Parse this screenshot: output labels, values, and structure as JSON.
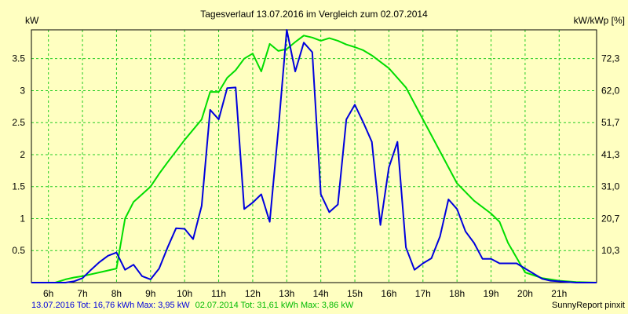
{
  "chart_data": {
    "type": "line",
    "title": "Tagesverlauf 13.07.2016 im Vergleich zum 02.07.2014",
    "ylabel_left": "kW",
    "ylabel_right": "kW/kWp [%]",
    "xlim": [
      5.5,
      22.1
    ],
    "ylim": [
      0,
      3.95
    ],
    "grid": true,
    "x_ticks": [
      {
        "x": 6,
        "label": "6h"
      },
      {
        "x": 7,
        "label": "7h"
      },
      {
        "x": 8,
        "label": "8h"
      },
      {
        "x": 9,
        "label": "9h"
      },
      {
        "x": 10,
        "label": "10h"
      },
      {
        "x": 11,
        "label": "11h"
      },
      {
        "x": 12,
        "label": "12h"
      },
      {
        "x": 13,
        "label": "13h"
      },
      {
        "x": 14,
        "label": "14h"
      },
      {
        "x": 15,
        "label": "15h"
      },
      {
        "x": 16,
        "label": "16h"
      },
      {
        "x": 17,
        "label": "17h"
      },
      {
        "x": 18,
        "label": "18h"
      },
      {
        "x": 19,
        "label": "19h"
      },
      {
        "x": 20,
        "label": "20h"
      },
      {
        "x": 21,
        "label": "21h"
      }
    ],
    "y_ticks_left": [
      {
        "y": 0.5,
        "label": "0.5"
      },
      {
        "y": 1,
        "label": "1"
      },
      {
        "y": 1.5,
        "label": "1.5"
      },
      {
        "y": 2,
        "label": "2"
      },
      {
        "y": 2.5,
        "label": "2.5"
      },
      {
        "y": 3,
        "label": "3"
      },
      {
        "y": 3.5,
        "label": "3.5"
      }
    ],
    "y_ticks_right": [
      {
        "y": 0.5,
        "label": "10,3"
      },
      {
        "y": 1,
        "label": "20,7"
      },
      {
        "y": 1.5,
        "label": "31,0"
      },
      {
        "y": 2,
        "label": "41,3"
      },
      {
        "y": 2.5,
        "label": "51,7"
      },
      {
        "y": 3,
        "label": "62,0"
      },
      {
        "y": 3.5,
        "label": "72,3"
      }
    ],
    "series": [
      {
        "name": "13.07.2016",
        "color": "#0000dd",
        "x": [
          5.5,
          6.5,
          6.75,
          7,
          7.25,
          7.5,
          7.75,
          8,
          8.25,
          8.5,
          8.75,
          9,
          9.25,
          9.5,
          9.75,
          10,
          10.25,
          10.5,
          10.75,
          11,
          11.25,
          11.5,
          11.75,
          12,
          12.25,
          12.5,
          12.75,
          13,
          13.25,
          13.5,
          13.75,
          14,
          14.25,
          14.5,
          14.75,
          15,
          15.25,
          15.5,
          15.75,
          16,
          16.25,
          16.5,
          16.75,
          17,
          17.25,
          17.5,
          17.75,
          18,
          18.25,
          18.5,
          18.75,
          19,
          19.25,
          19.5,
          19.75,
          20,
          20.25,
          20.5,
          20.75,
          21,
          21.25,
          21.5,
          22.1
        ],
        "y": [
          0,
          0,
          0.02,
          0.07,
          0.2,
          0.32,
          0.42,
          0.47,
          0.2,
          0.28,
          0.1,
          0.05,
          0.22,
          0.55,
          0.85,
          0.84,
          0.68,
          1.2,
          2.7,
          2.55,
          3.04,
          3.05,
          1.15,
          1.25,
          1.38,
          0.95,
          2.38,
          3.95,
          3.3,
          3.75,
          3.6,
          1.38,
          1.1,
          1.22,
          2.55,
          2.78,
          2.5,
          2.2,
          0.9,
          1.8,
          2.2,
          0.55,
          0.2,
          0.3,
          0.38,
          0.72,
          1.3,
          1.15,
          0.8,
          0.62,
          0.37,
          0.37,
          0.3,
          0.3,
          0.3,
          0.22,
          0.14,
          0.06,
          0.03,
          0.02,
          0.01,
          0,
          0
        ]
      },
      {
        "name": "02.07.2014",
        "color": "#00dd00",
        "x": [
          5.5,
          6.2,
          6.5,
          6.75,
          7,
          7.5,
          8,
          8.25,
          8.5,
          8.75,
          9,
          9.25,
          9.5,
          10,
          10.5,
          10.75,
          11,
          11.25,
          11.5,
          11.75,
          12,
          12.25,
          12.5,
          12.75,
          13,
          13.25,
          13.5,
          13.75,
          14,
          14.25,
          14.5,
          14.75,
          15,
          15.25,
          15.5,
          15.75,
          16,
          16.5,
          17,
          17.5,
          18,
          18.5,
          19,
          19.25,
          19.5,
          20,
          20.5,
          21,
          21.5,
          22.1
        ],
        "y": [
          0,
          0,
          0.05,
          0.08,
          0.1,
          0.16,
          0.22,
          1.0,
          1.26,
          1.38,
          1.5,
          1.7,
          1.88,
          2.23,
          2.55,
          2.98,
          2.98,
          3.2,
          3.32,
          3.5,
          3.58,
          3.3,
          3.73,
          3.62,
          3.65,
          3.76,
          3.86,
          3.83,
          3.78,
          3.82,
          3.78,
          3.72,
          3.68,
          3.63,
          3.55,
          3.45,
          3.35,
          3.05,
          2.55,
          2.05,
          1.55,
          1.28,
          1.08,
          0.95,
          0.62,
          0.16,
          0.07,
          0.03,
          0.01,
          0
        ]
      }
    ],
    "footer_left": {
      "blue": "13.07.2016 Tot: 16,76 kWh Max: 3,95 kW",
      "green": "02.07.2014 Tot: 31,61 kWh Max: 3,86 kW"
    },
    "footer_right": "SunnyReport pinxit"
  }
}
